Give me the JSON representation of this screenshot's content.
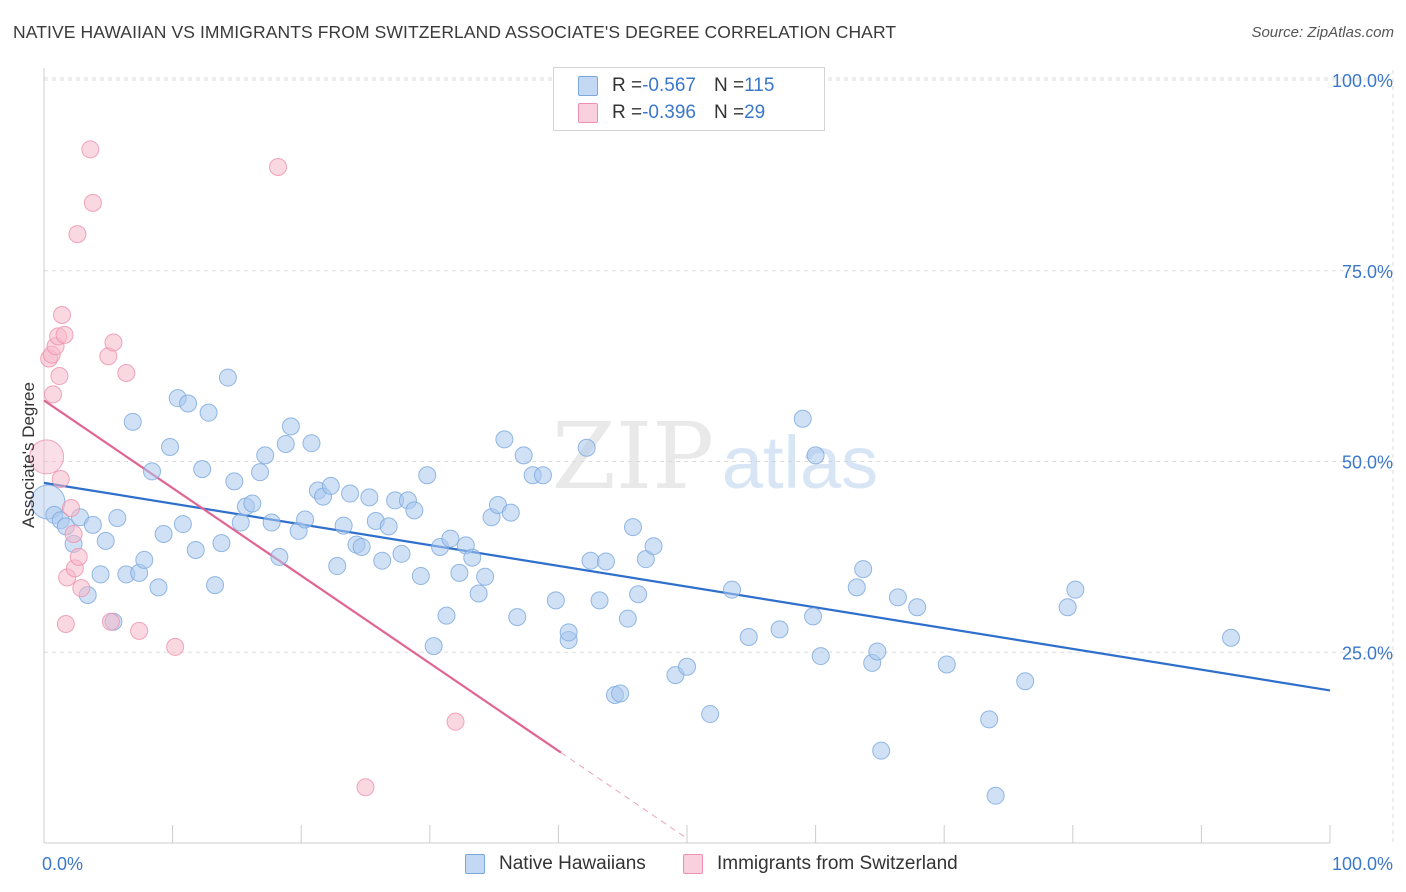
{
  "title": "NATIVE HAWAIIAN VS IMMIGRANTS FROM SWITZERLAND ASSOCIATE'S DEGREE CORRELATION CHART",
  "source": "Source: ZipAtlas.com",
  "watermark": {
    "zip": "ZIP",
    "atlas": "atlas"
  },
  "colors": {
    "blue_fill": "#a9c8ee",
    "blue_stroke": "#7aa7dc",
    "blue_line": "#2f6fcc",
    "pink_fill": "#f6b8cb",
    "pink_stroke": "#ee90ad",
    "pink_line": "#e06592",
    "axis_label": "#3b78c9",
    "grid": "#dddddd"
  },
  "legend": {
    "rows": [
      {
        "r_label": "R = ",
        "r_value": "-0.567",
        "n_label": "N = ",
        "n_value": "115"
      },
      {
        "r_label": "R = ",
        "r_value": "-0.396",
        "n_label": "N = ",
        "n_value": "29"
      }
    ]
  },
  "chart_data": {
    "type": "scatter",
    "title": "NATIVE HAWAIIAN VS IMMIGRANTS FROM SWITZERLAND ASSOCIATE'S DEGREE CORRELATION CHART",
    "xlabel": "",
    "ylabel": "Associate's Degree",
    "xlim": [
      0,
      100
    ],
    "ylim": [
      0,
      100
    ],
    "x_tick_labels": [
      "0.0%",
      "100.0%"
    ],
    "y_ticks": [
      {
        "value": 25,
        "label": "25.0%"
      },
      {
        "value": 50,
        "label": "50.0%"
      },
      {
        "value": 75,
        "label": "75.0%"
      },
      {
        "value": 100,
        "label": "100.0%"
      }
    ],
    "grid": true,
    "legend_position": "top-center",
    "series": [
      {
        "name": "Native Hawaiians",
        "color": "#a9c8ee",
        "r": -0.567,
        "n": 115,
        "trend": {
          "x0": 0,
          "y0": 47.2,
          "x1": 100,
          "y1": 20.0
        },
        "points": [
          [
            0.3,
            44.7
          ],
          [
            0.8,
            43
          ],
          [
            1.3,
            42.3
          ],
          [
            1.7,
            41.5
          ],
          [
            2.3,
            39.2
          ],
          [
            2.8,
            42.7
          ],
          [
            3.4,
            32.5
          ],
          [
            3.8,
            41.7
          ],
          [
            4.4,
            35.2
          ],
          [
            4.8,
            39.6
          ],
          [
            5.4,
            29
          ],
          [
            5.7,
            42.6
          ],
          [
            6.4,
            35.2
          ],
          [
            6.9,
            55.2
          ],
          [
            7.4,
            35.4
          ],
          [
            7.8,
            37.1
          ],
          [
            8.4,
            48.7
          ],
          [
            8.9,
            33.5
          ],
          [
            9.3,
            40.5
          ],
          [
            9.8,
            51.9
          ],
          [
            10.4,
            58.3
          ],
          [
            10.8,
            41.8
          ],
          [
            11.2,
            57.6
          ],
          [
            11.8,
            38.4
          ],
          [
            12.3,
            49
          ],
          [
            12.8,
            56.4
          ],
          [
            13.3,
            33.8
          ],
          [
            13.8,
            39.3
          ],
          [
            14.3,
            61
          ],
          [
            14.8,
            47.4
          ],
          [
            15.3,
            42
          ],
          [
            15.7,
            44.1
          ],
          [
            16.2,
            44.5
          ],
          [
            16.8,
            48.6
          ],
          [
            17.2,
            50.8
          ],
          [
            17.7,
            42
          ],
          [
            18.3,
            37.5
          ],
          [
            18.8,
            52.3
          ],
          [
            19.2,
            54.6
          ],
          [
            19.8,
            40.9
          ],
          [
            20.3,
            42.4
          ],
          [
            20.8,
            52.4
          ],
          [
            21.3,
            46.2
          ],
          [
            21.7,
            45.4
          ],
          [
            22.3,
            46.8
          ],
          [
            22.8,
            36.3
          ],
          [
            23.3,
            41.6
          ],
          [
            23.8,
            45.8
          ],
          [
            24.3,
            39.1
          ],
          [
            24.7,
            38.8
          ],
          [
            25.3,
            45.3
          ],
          [
            25.8,
            42.2
          ],
          [
            26.3,
            37
          ],
          [
            26.8,
            41.5
          ],
          [
            27.3,
            44.9
          ],
          [
            27.8,
            37.9
          ],
          [
            28.3,
            44.9
          ],
          [
            28.8,
            43.6
          ],
          [
            29.3,
            35
          ],
          [
            29.8,
            48.2
          ],
          [
            30.3,
            25.8
          ],
          [
            30.8,
            38.8
          ],
          [
            31.3,
            29.8
          ],
          [
            31.6,
            39.9
          ],
          [
            32.3,
            35.4
          ],
          [
            32.8,
            39
          ],
          [
            33.3,
            37.4
          ],
          [
            33.8,
            32.7
          ],
          [
            34.3,
            34.9
          ],
          [
            34.8,
            42.7
          ],
          [
            35.3,
            44.3
          ],
          [
            35.8,
            52.9
          ],
          [
            36.3,
            43.3
          ],
          [
            36.8,
            29.6
          ],
          [
            37.3,
            50.8
          ],
          [
            38,
            48.2
          ],
          [
            38.8,
            48.2
          ],
          [
            39.8,
            31.8
          ],
          [
            40.8,
            26.6
          ],
          [
            40.8,
            27.6
          ],
          [
            42.2,
            51.8
          ],
          [
            42.5,
            37
          ],
          [
            43.2,
            31.8
          ],
          [
            43.7,
            36.9
          ],
          [
            44.4,
            19.4
          ],
          [
            44.8,
            19.6
          ],
          [
            45.4,
            29.4
          ],
          [
            45.8,
            41.4
          ],
          [
            46.2,
            32.6
          ],
          [
            46.8,
            37.2
          ],
          [
            47.4,
            38.9
          ],
          [
            49.1,
            22
          ],
          [
            50,
            23.1
          ],
          [
            51.8,
            16.9
          ],
          [
            53.5,
            33.2
          ],
          [
            54.8,
            27
          ],
          [
            57.2,
            28
          ],
          [
            59,
            55.6
          ],
          [
            59.8,
            29.7
          ],
          [
            60,
            50.8
          ],
          [
            60.4,
            24.5
          ],
          [
            63.2,
            33.5
          ],
          [
            63.7,
            35.9
          ],
          [
            64.4,
            23.6
          ],
          [
            64.8,
            25.1
          ],
          [
            65.1,
            12.1
          ],
          [
            66.4,
            32.2
          ],
          [
            67.9,
            30.9
          ],
          [
            70.2,
            23.4
          ],
          [
            73.5,
            16.2
          ],
          [
            74,
            6.2
          ],
          [
            76.3,
            21.2
          ],
          [
            79.6,
            30.9
          ],
          [
            80.2,
            33.2
          ],
          [
            92.3,
            26.9
          ]
        ]
      },
      {
        "name": "Immigrants from Switzerland",
        "color": "#f6b8cb",
        "r": -0.396,
        "n": 29,
        "trend": {
          "x0": 0,
          "y0": 58.0,
          "x1": 50,
          "y1": 0.6,
          "solid_until_x": 40.2
        },
        "points": [
          [
            0.2,
            50.6
          ],
          [
            0.4,
            63.5
          ],
          [
            0.6,
            64
          ],
          [
            0.7,
            58.8
          ],
          [
            0.9,
            65.1
          ],
          [
            1.1,
            66.4
          ],
          [
            1.2,
            61.2
          ],
          [
            1.3,
            47.7
          ],
          [
            1.4,
            69.2
          ],
          [
            1.6,
            66.6
          ],
          [
            1.8,
            34.8
          ],
          [
            1.7,
            28.7
          ],
          [
            2.1,
            43.9
          ],
          [
            2.3,
            40.5
          ],
          [
            2.4,
            36
          ],
          [
            2.6,
            79.8
          ],
          [
            2.7,
            37.5
          ],
          [
            2.9,
            33.4
          ],
          [
            3.6,
            90.9
          ],
          [
            3.8,
            83.9
          ],
          [
            5,
            63.8
          ],
          [
            5.2,
            29
          ],
          [
            5.4,
            65.6
          ],
          [
            6.4,
            61.6
          ],
          [
            7.4,
            27.8
          ],
          [
            10.2,
            25.7
          ],
          [
            18.2,
            88.6
          ],
          [
            25,
            7.3
          ],
          [
            32,
            15.9
          ]
        ]
      }
    ]
  }
}
